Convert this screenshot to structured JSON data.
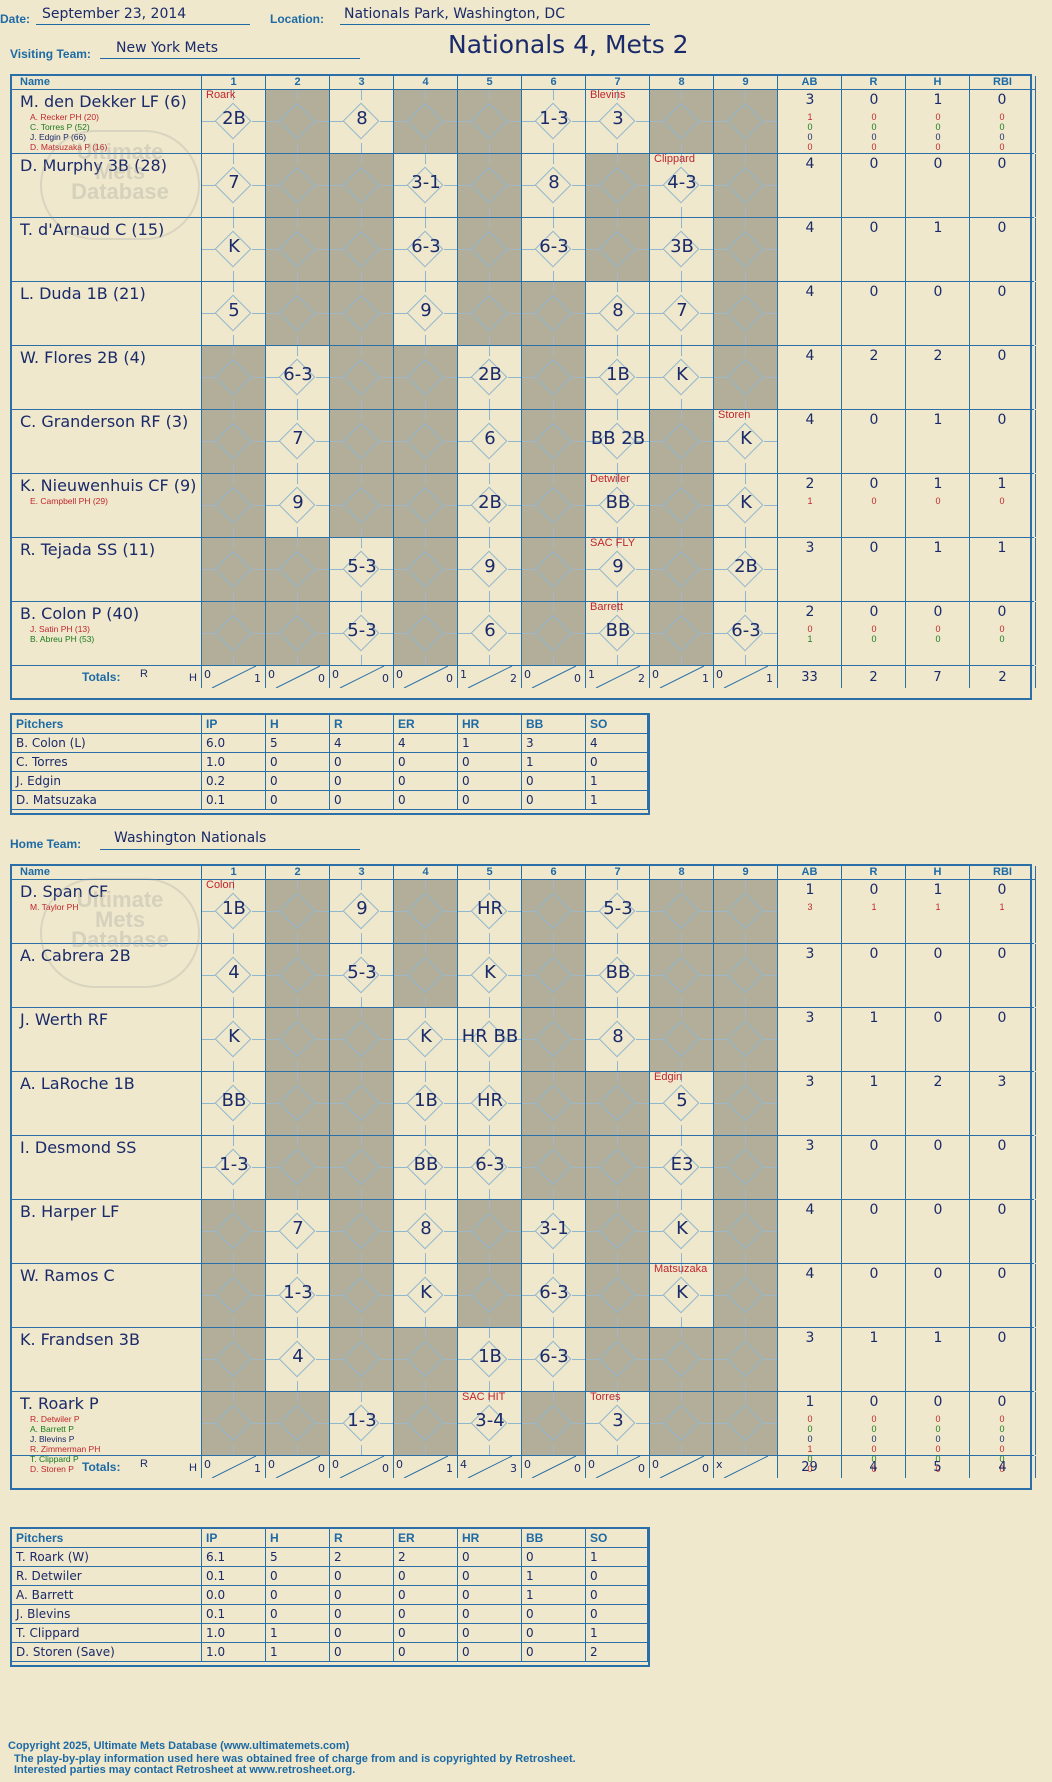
{
  "header": {
    "date_label": "Date:",
    "date": "September 23, 2014",
    "location_label": "Location:",
    "location": "Nationals Park, Washington, DC",
    "visiting_label": "Visiting Team:",
    "visiting_team": "New York Mets",
    "home_label": "Home Team:",
    "home_team": "Washington Nationals",
    "title": "Nationals 4, Mets 2"
  },
  "columns": [
    "Name",
    "1",
    "2",
    "3",
    "4",
    "5",
    "6",
    "7",
    "8",
    "9",
    "AB",
    "R",
    "H",
    "RBI"
  ],
  "totals_label": "Totals:",
  "rh_r": "R",
  "rh_h": "H",
  "watermark": {
    "line1": "Ultimate",
    "line2": "Mets",
    "line3": "Database",
    "url": "ultimatemets.com"
  },
  "visitors": {
    "rows": [
      {
        "name": "M. den Dekker LF (6)",
        "subs": [
          "A. Recker PH (20)",
          "C. Torres P (52)",
          "J. Edgin P (66)",
          "D. Matsuzaka P (16)"
        ],
        "stats": [
          "3",
          "0",
          "1",
          "0"
        ],
        "sub_stats": [
          [
            "1",
            "0",
            "0",
            "0"
          ],
          [
            "0",
            "0",
            "0",
            "0"
          ],
          [
            "0",
            "0",
            "0",
            "0"
          ],
          [
            "0",
            "0",
            "0",
            "0"
          ]
        ],
        "cells": [
          "2B",
          "",
          "8",
          "",
          "",
          "1-3",
          "3",
          "",
          ""
        ],
        "notes": [
          "Roark",
          "",
          "",
          "",
          "",
          "",
          "Blevins",
          "",
          ""
        ]
      },
      {
        "name": "D. Murphy 3B (28)",
        "subs": [],
        "stats": [
          "4",
          "0",
          "0",
          "0"
        ],
        "sub_stats": [],
        "cells": [
          "7",
          "",
          "",
          "3-1",
          "",
          "8",
          "",
          "4-3",
          ""
        ],
        "notes": [
          "",
          "",
          "",
          "",
          "",
          "",
          "",
          "Clippard",
          ""
        ]
      },
      {
        "name": "T. d'Arnaud C (15)",
        "subs": [],
        "stats": [
          "4",
          "0",
          "1",
          "0"
        ],
        "sub_stats": [],
        "cells": [
          "K",
          "",
          "",
          "6-3",
          "",
          "6-3",
          "",
          "3B",
          ""
        ],
        "notes": [
          "",
          "",
          "",
          "",
          "",
          "",
          "",
          "",
          ""
        ]
      },
      {
        "name": "L. Duda 1B (21)",
        "subs": [],
        "stats": [
          "4",
          "0",
          "0",
          "0"
        ],
        "sub_stats": [],
        "cells": [
          "5",
          "",
          "",
          "9",
          "",
          "",
          "8",
          "7",
          ""
        ],
        "notes": [
          "",
          "",
          "",
          "",
          "",
          "",
          "",
          "",
          ""
        ]
      },
      {
        "name": "W. Flores 2B (4)",
        "subs": [],
        "stats": [
          "4",
          "2",
          "2",
          "0"
        ],
        "sub_stats": [],
        "cells": [
          "",
          "6-3",
          "",
          "",
          "2B",
          "",
          "1B",
          "K",
          ""
        ],
        "notes": [
          "",
          "",
          "",
          "",
          "",
          "",
          "",
          "",
          ""
        ]
      },
      {
        "name": "C. Granderson RF (3)",
        "subs": [],
        "stats": [
          "4",
          "0",
          "1",
          "0"
        ],
        "sub_stats": [],
        "cells": [
          "",
          "7",
          "",
          "",
          "6",
          "",
          "BB 2B",
          "",
          "K"
        ],
        "notes": [
          "",
          "",
          "",
          "",
          "",
          "",
          "",
          "",
          "Storen"
        ]
      },
      {
        "name": "K. Nieuwenhuis CF (9)",
        "subs": [
          "E. Campbell PH (29)"
        ],
        "stats": [
          "2",
          "0",
          "1",
          "1"
        ],
        "sub_stats": [
          [
            "1",
            "0",
            "0",
            "0"
          ]
        ],
        "cells": [
          "",
          "9",
          "",
          "",
          "2B",
          "",
          "BB",
          "",
          "K"
        ],
        "notes": [
          "",
          "",
          "",
          "",
          "",
          "",
          "Detwiler",
          "",
          ""
        ]
      },
      {
        "name": "R. Tejada SS (11)",
        "subs": [],
        "stats": [
          "3",
          "0",
          "1",
          "1"
        ],
        "sub_stats": [],
        "cells": [
          "",
          "",
          "5-3",
          "",
          "9",
          "",
          "9",
          "",
          "2B"
        ],
        "notes": [
          "",
          "",
          "",
          "",
          "",
          "",
          "SAC FLY",
          "",
          ""
        ]
      },
      {
        "name": "B. Colon P (40)",
        "subs": [
          "J. Satin PH (13)",
          "B. Abreu PH (53)"
        ],
        "stats": [
          "2",
          "0",
          "0",
          "0"
        ],
        "sub_stats": [
          [
            "0",
            "0",
            "0",
            "0"
          ],
          [
            "1",
            "0",
            "0",
            "0"
          ]
        ],
        "cells": [
          "",
          "",
          "5-3",
          "",
          "6",
          "",
          "BB",
          "",
          "6-3"
        ],
        "notes": [
          "",
          "",
          "",
          "",
          "",
          "",
          "Barrett",
          "",
          ""
        ]
      }
    ],
    "totals": [
      [
        "0",
        "1"
      ],
      [
        "0",
        "0"
      ],
      [
        "0",
        "0"
      ],
      [
        "0",
        "0"
      ],
      [
        "1",
        "2"
      ],
      [
        "0",
        "0"
      ],
      [
        "1",
        "2"
      ],
      [
        "0",
        "1"
      ],
      [
        "0",
        "1"
      ]
    ],
    "total_stats": [
      "33",
      "2",
      "7",
      "2"
    ]
  },
  "visitor_pitchers": {
    "headers": [
      "Pitchers",
      "IP",
      "H",
      "R",
      "ER",
      "HR",
      "BB",
      "SO"
    ],
    "rows": [
      [
        "B. Colon (L)",
        "6.0",
        "5",
        "4",
        "4",
        "1",
        "3",
        "4"
      ],
      [
        "C. Torres",
        "1.0",
        "0",
        "0",
        "0",
        "0",
        "1",
        "0"
      ],
      [
        "J. Edgin",
        "0.2",
        "0",
        "0",
        "0",
        "0",
        "0",
        "1"
      ],
      [
        "D. Matsuzaka",
        "0.1",
        "0",
        "0",
        "0",
        "0",
        "0",
        "1"
      ]
    ]
  },
  "home": {
    "rows": [
      {
        "name": "D. Span CF",
        "subs": [
          "M. Taylor PH"
        ],
        "stats": [
          "1",
          "0",
          "1",
          "0"
        ],
        "sub_stats": [
          [
            "3",
            "1",
            "1",
            "1"
          ]
        ],
        "cells": [
          "1B",
          "",
          "9",
          "",
          "HR",
          "",
          "5-3",
          "",
          ""
        ],
        "notes": [
          "Colon",
          "",
          "",
          "",
          "",
          "",
          "",
          "",
          ""
        ]
      },
      {
        "name": "A. Cabrera 2B",
        "subs": [],
        "stats": [
          "3",
          "0",
          "0",
          "0"
        ],
        "sub_stats": [],
        "cells": [
          "4",
          "",
          "5-3",
          "",
          "K",
          "",
          "BB",
          "",
          ""
        ],
        "notes": [
          "",
          "",
          "",
          "",
          "",
          "",
          "",
          "",
          ""
        ]
      },
      {
        "name": "J. Werth RF",
        "subs": [],
        "stats": [
          "3",
          "1",
          "0",
          "0"
        ],
        "sub_stats": [],
        "cells": [
          "K",
          "",
          "",
          "K",
          "HR BB",
          "",
          "8",
          "",
          ""
        ],
        "notes": [
          "",
          "",
          "",
          "",
          "",
          "",
          "",
          "",
          ""
        ]
      },
      {
        "name": "A. LaRoche 1B",
        "subs": [],
        "stats": [
          "3",
          "1",
          "2",
          "3"
        ],
        "sub_stats": [],
        "cells": [
          "BB",
          "",
          "",
          "1B",
          "HR",
          "",
          "",
          "5",
          ""
        ],
        "notes": [
          "",
          "",
          "",
          "",
          "",
          "",
          "",
          "Edgin",
          ""
        ]
      },
      {
        "name": "I. Desmond SS",
        "subs": [],
        "stats": [
          "3",
          "0",
          "0",
          "0"
        ],
        "sub_stats": [],
        "cells": [
          "1-3",
          "",
          "",
          "BB",
          "6-3",
          "",
          "",
          "E3",
          ""
        ],
        "notes": [
          "",
          "",
          "",
          "",
          "",
          "",
          "",
          "",
          ""
        ]
      },
      {
        "name": "B. Harper LF",
        "subs": [],
        "stats": [
          "4",
          "0",
          "0",
          "0"
        ],
        "sub_stats": [],
        "cells": [
          "",
          "7",
          "",
          "8",
          "",
          "3-1",
          "",
          "K",
          ""
        ],
        "notes": [
          "",
          "",
          "",
          "",
          "",
          "",
          "",
          "",
          ""
        ]
      },
      {
        "name": "W. Ramos C",
        "subs": [],
        "stats": [
          "4",
          "0",
          "0",
          "0"
        ],
        "sub_stats": [],
        "cells": [
          "",
          "1-3",
          "",
          "K",
          "",
          "6-3",
          "",
          "K",
          ""
        ],
        "notes": [
          "",
          "",
          "",
          "",
          "",
          "",
          "",
          "Matsuzaka",
          ""
        ]
      },
      {
        "name": "K. Frandsen 3B",
        "subs": [],
        "stats": [
          "3",
          "1",
          "1",
          "0"
        ],
        "sub_stats": [],
        "cells": [
          "",
          "4",
          "",
          "",
          "1B",
          "6-3",
          "",
          "",
          ""
        ],
        "notes": [
          "",
          "",
          "",
          "",
          "",
          "",
          "",
          "",
          ""
        ]
      },
      {
        "name": "T. Roark P",
        "subs": [
          "R. Detwiler P",
          "A. Barrett P",
          "J. Blevins P",
          "R. Zimmerman PH",
          "T. Clippard P",
          "D. Storen P"
        ],
        "stats": [
          "1",
          "0",
          "0",
          "0"
        ],
        "sub_stats": [
          [
            "0",
            "0",
            "0",
            "0"
          ],
          [
            "0",
            "0",
            "0",
            "0"
          ],
          [
            "0",
            "0",
            "0",
            "0"
          ],
          [
            "1",
            "0",
            "0",
            "0"
          ],
          [
            "0",
            "0",
            "0",
            "0"
          ],
          [
            "0",
            "0",
            "0",
            "0"
          ]
        ],
        "cells": [
          "",
          "",
          "1-3",
          "",
          "3-4",
          "",
          "3",
          "",
          ""
        ],
        "notes": [
          "",
          "",
          "",
          "",
          "SAC HIT",
          "",
          "Torres",
          "",
          ""
        ]
      }
    ],
    "totals": [
      [
        "0",
        "1"
      ],
      [
        "0",
        "0"
      ],
      [
        "0",
        "0"
      ],
      [
        "0",
        "1"
      ],
      [
        "4",
        "3"
      ],
      [
        "0",
        "0"
      ],
      [
        "0",
        "0"
      ],
      [
        "0",
        "0"
      ],
      [
        "x",
        ""
      ]
    ],
    "total_stats": [
      "29",
      "4",
      "5",
      "4"
    ]
  },
  "home_pitchers": {
    "headers": [
      "Pitchers",
      "IP",
      "H",
      "R",
      "ER",
      "HR",
      "BB",
      "SO"
    ],
    "rows": [
      [
        "T. Roark (W)",
        "6.1",
        "5",
        "2",
        "2",
        "0",
        "0",
        "1"
      ],
      [
        "R. Detwiler",
        "0.1",
        "0",
        "0",
        "0",
        "0",
        "1",
        "0"
      ],
      [
        "A. Barrett",
        "0.0",
        "0",
        "0",
        "0",
        "0",
        "1",
        "0"
      ],
      [
        "J. Blevins",
        "0.1",
        "0",
        "0",
        "0",
        "0",
        "0",
        "0"
      ],
      [
        "T. Clippard",
        "1.0",
        "1",
        "0",
        "0",
        "0",
        "0",
        "1"
      ],
      [
        "D. Storen (Save)",
        "1.0",
        "1",
        "0",
        "0",
        "0",
        "0",
        "2"
      ]
    ]
  },
  "footer": {
    "line1": "Copyright 2025, Ultimate Mets Database (www.ultimatemets.com)",
    "line2": "The play-by-play information used here was obtained free of charge from and is copyrighted by Retrosheet.",
    "line3": "Interested parties may contact Retrosheet at www.retrosheet.org."
  }
}
